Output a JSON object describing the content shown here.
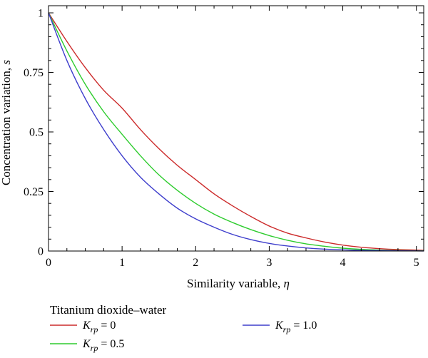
{
  "chart_data": {
    "type": "line",
    "xlabel": {
      "text": "Similarity variable, ",
      "symbol": "η"
    },
    "ylabel": {
      "text": "Concentration variation, ",
      "symbol": "s"
    },
    "xlim": [
      0,
      5.1
    ],
    "ylim": [
      0,
      1.03
    ],
    "x_ticks": [
      0,
      1,
      2,
      3,
      4,
      5
    ],
    "x_tick_labels": [
      "0",
      "1",
      "2",
      "3",
      "4",
      "5"
    ],
    "y_ticks": [
      0,
      0.25,
      0.5,
      0.75,
      1
    ],
    "y_tick_labels": [
      "0",
      "0.25",
      "0.5",
      "0.75",
      "1"
    ],
    "grid": false,
    "legend": {
      "title": "Titanium dioxide–water",
      "placement": "bottom",
      "entries": [
        {
          "symbol": "K",
          "subscript": "rp",
          "suffix": " = 0"
        },
        {
          "symbol": "K",
          "subscript": "rp",
          "suffix": " = 0.5"
        },
        {
          "symbol": "K",
          "subscript": "rp",
          "suffix": " = 1.0"
        }
      ]
    },
    "series": [
      {
        "color": "#cc2a2a",
        "x": [
          0,
          0.25,
          0.5,
          0.75,
          1.0,
          1.25,
          1.5,
          1.75,
          2.0,
          2.25,
          2.5,
          2.75,
          3.0,
          3.25,
          3.5,
          3.75,
          4.0,
          4.25,
          4.5,
          4.75,
          5.0,
          5.1
        ],
        "y": [
          1.0,
          0.88,
          0.77,
          0.675,
          0.6,
          0.51,
          0.43,
          0.36,
          0.3,
          0.24,
          0.19,
          0.145,
          0.105,
          0.075,
          0.055,
          0.038,
          0.025,
          0.016,
          0.01,
          0.006,
          0.004,
          0.003
        ]
      },
      {
        "color": "#2ecc2e",
        "x": [
          0,
          0.25,
          0.5,
          0.75,
          1.0,
          1.25,
          1.5,
          1.75,
          2.0,
          2.25,
          2.5,
          2.75,
          3.0,
          3.25,
          3.5,
          3.75,
          4.0,
          4.25,
          4.5,
          4.75,
          5.0,
          5.1
        ],
        "y": [
          1.0,
          0.84,
          0.7,
          0.585,
          0.49,
          0.4,
          0.32,
          0.255,
          0.2,
          0.155,
          0.12,
          0.09,
          0.065,
          0.045,
          0.03,
          0.02,
          0.012,
          0.007,
          0.004,
          0.002,
          0.001,
          0.001
        ]
      },
      {
        "color": "#3e3ecc",
        "x": [
          0,
          0.25,
          0.5,
          0.75,
          1.0,
          1.25,
          1.5,
          1.75,
          2.0,
          2.25,
          2.5,
          2.75,
          3.0,
          3.25,
          3.5,
          3.75,
          4.0,
          4.25,
          4.5,
          4.75,
          5.0,
          5.1
        ],
        "y": [
          1.0,
          0.8,
          0.64,
          0.51,
          0.4,
          0.31,
          0.24,
          0.18,
          0.135,
          0.1,
          0.07,
          0.048,
          0.032,
          0.021,
          0.013,
          0.008,
          0.005,
          0.003,
          0.002,
          0.001,
          0.0005,
          0.0003
        ]
      }
    ]
  }
}
